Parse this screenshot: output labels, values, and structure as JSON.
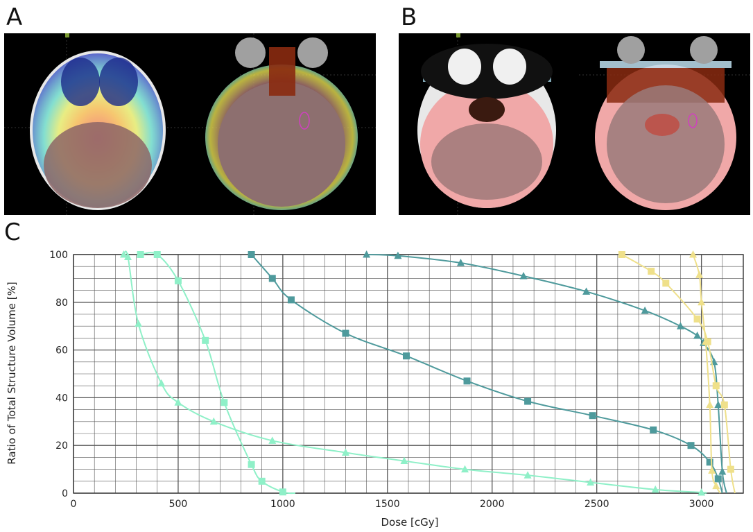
{
  "figure": {
    "panel_labels": [
      "A",
      "B",
      "C"
    ]
  },
  "colors": {
    "light_green": "#8ff0c8",
    "teal": "#4e9a9c",
    "yellow": "#efe08a",
    "grid": "#555555",
    "scan_bg": "#000000"
  },
  "chart_data": {
    "type": "line",
    "title": "",
    "xlabel": "Dose [cGy]",
    "ylabel": "Ratio of Total Structure Volume [%]",
    "xlim": [
      0,
      3200
    ],
    "ylim": [
      0,
      100
    ],
    "xticks": [
      0,
      500,
      1000,
      1500,
      2000,
      2500,
      3000
    ],
    "yticks": [
      0,
      20,
      40,
      60,
      80,
      100
    ],
    "grid": true,
    "legend": "none",
    "series": [
      {
        "color": "light_green",
        "marker": "square",
        "x": [
          320,
          400,
          500,
          630,
          720,
          850,
          900,
          1000,
          1060
        ],
        "y": [
          100,
          100,
          89,
          64,
          38,
          12,
          5,
          0.5,
          0
        ]
      },
      {
        "color": "light_green",
        "marker": "triangle",
        "x": [
          240,
          260,
          310,
          420,
          500,
          670,
          950,
          1300,
          1580,
          1870,
          2170,
          2470,
          2780,
          3000,
          3020
        ],
        "y": [
          100,
          99,
          71,
          46,
          38,
          30,
          22,
          17,
          13.5,
          10,
          7.5,
          4.5,
          1.5,
          0.3,
          0
        ]
      },
      {
        "color": "teal",
        "marker": "square",
        "x": [
          850,
          950,
          1040,
          1300,
          1590,
          1880,
          2170,
          2480,
          2770,
          2950,
          3040,
          3080,
          3100
        ],
        "y": [
          100,
          90,
          81,
          67,
          57.5,
          47,
          38.5,
          32.5,
          26.5,
          20,
          13,
          6,
          0
        ]
      },
      {
        "color": "teal",
        "marker": "triangle",
        "x": [
          1400,
          1550,
          1850,
          2150,
          2450,
          2730,
          2900,
          2980,
          3010,
          3060,
          3080,
          3100,
          3120
        ],
        "y": [
          100,
          99.5,
          96.5,
          91,
          84.5,
          76.5,
          70,
          66,
          63,
          55,
          37,
          9,
          0
        ]
      },
      {
        "color": "yellow",
        "marker": "square",
        "x": [
          2620,
          2760,
          2830,
          2980,
          3030,
          3070,
          3110,
          3140,
          3160
        ],
        "y": [
          100,
          93,
          88,
          73,
          63.5,
          45,
          37,
          10,
          0
        ]
      },
      {
        "color": "yellow",
        "marker": "triangle",
        "x": [
          2960,
          2990,
          3000,
          3020,
          3040,
          3050,
          3070,
          3090
        ],
        "y": [
          100,
          91.5,
          80,
          63.5,
          37,
          9.5,
          3,
          0
        ]
      }
    ]
  }
}
